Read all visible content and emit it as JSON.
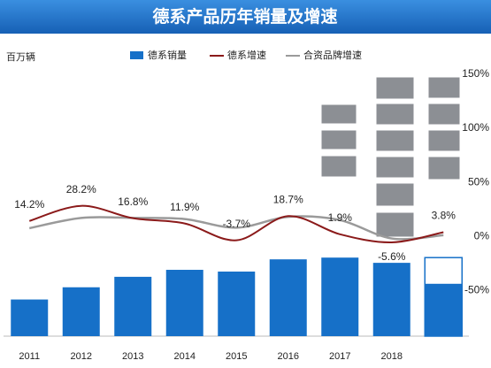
{
  "chart_data": {
    "type": "bar_line",
    "title": "德系产品历年销量及增速",
    "y_label": "百万辆",
    "categories": [
      "2011",
      "2012",
      "2013",
      "2014",
      "2015",
      "2016",
      "2017",
      "2018",
      null
    ],
    "ylim": [
      0,
      15
    ],
    "y2lim": [
      -90,
      150
    ],
    "y2ticks": [
      {
        "value": 150,
        "label": "150%"
      },
      {
        "value": 100,
        "label": "100%"
      },
      {
        "value": 50,
        "label": "50%"
      },
      {
        "value": 0,
        "label": "0%"
      },
      {
        "value": -50,
        "label": "-50%"
      }
    ],
    "series": [
      {
        "name": "德系销量",
        "type": "bar",
        "color": "#1670c8",
        "values": [
          2.1,
          2.8,
          3.4,
          3.8,
          3.7,
          4.4,
          4.5,
          4.2,
          3.0
        ],
        "outline_values": [
          null,
          null,
          null,
          null,
          null,
          null,
          null,
          null,
          4.5
        ]
      },
      {
        "name": "德系增速",
        "type": "line",
        "axis": "y2",
        "color": "#8b1a1a",
        "values": [
          14.2,
          28.2,
          16.8,
          11.9,
          -3.7,
          18.7,
          1.9,
          -5.6,
          3.8
        ],
        "value_labels": [
          "14.2%",
          "28.2%",
          "16.8%",
          "11.9%",
          "-3.7%",
          "18.7%",
          "1.9%",
          "-5.6%",
          "3.8%"
        ]
      },
      {
        "name": "合资品牌增速",
        "type": "line",
        "axis": "y2",
        "color": "#9a9a9a",
        "values": [
          7.5,
          17,
          17,
          16,
          8,
          18,
          15,
          -2,
          1
        ]
      }
    ]
  }
}
